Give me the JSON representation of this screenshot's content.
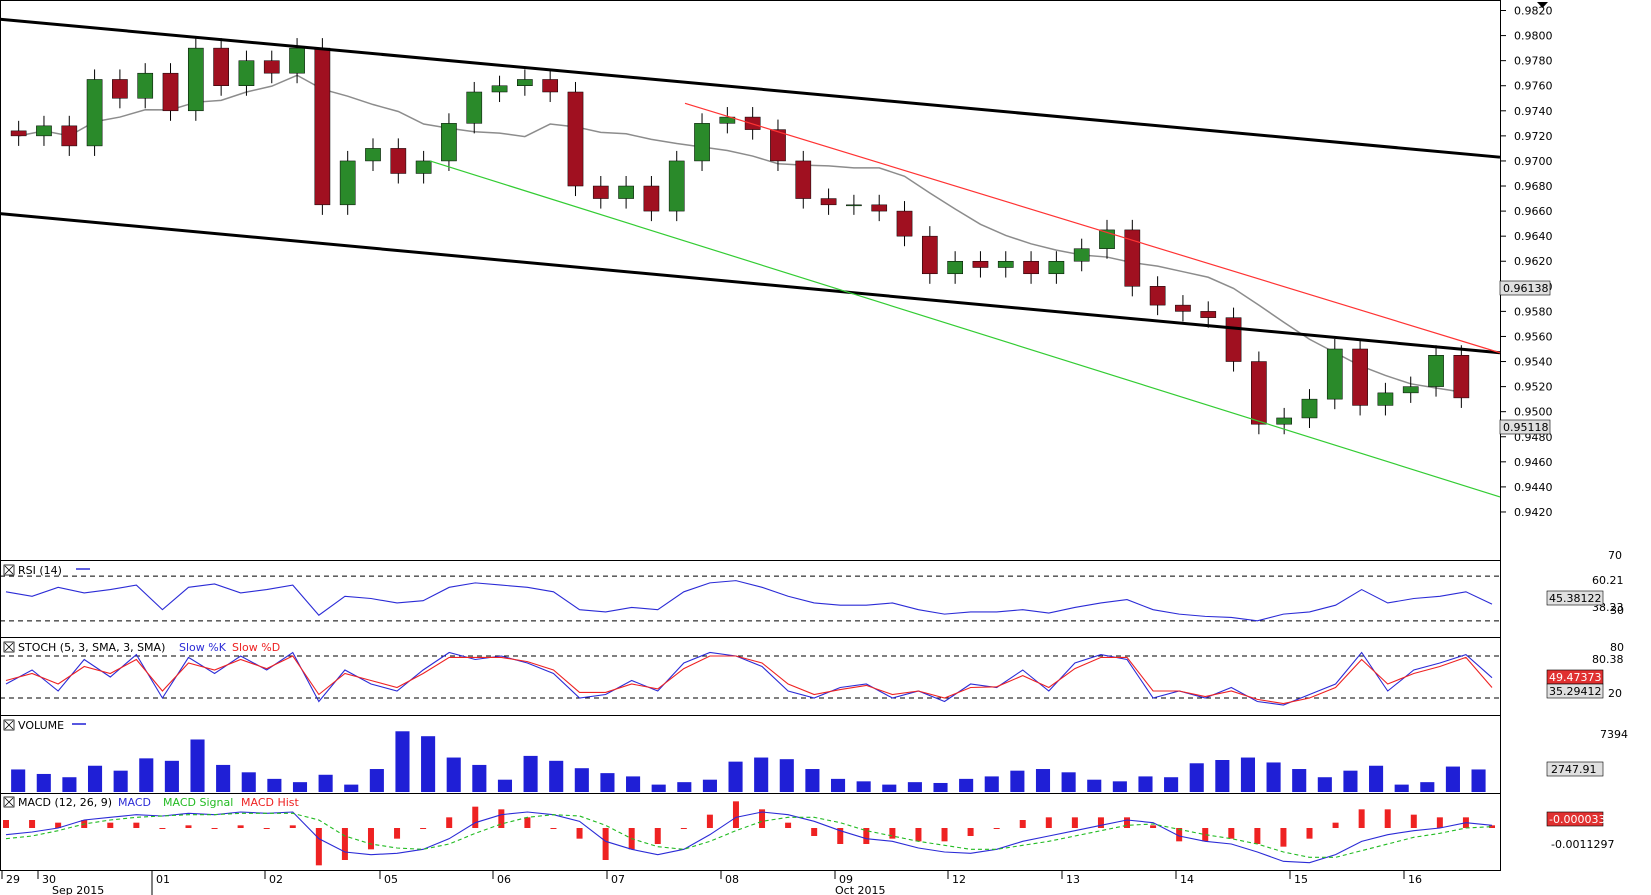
{
  "colors": {
    "candle_up": "#2a8a2a",
    "candle_down": "#a01020",
    "channel": "#000000",
    "moving_average": "#8c8c8c",
    "support_line": "#33cc33",
    "resistance_line": "#ff3333",
    "rsi": "#2b2bd6",
    "stoch_k": "#2b2bd6",
    "stoch_d": "#ee2222",
    "volume": "#1f1fd6",
    "macd": "#2b2bd6",
    "macd_signal": "#22bb22",
    "macd_hist": "#ee2222",
    "sma_label_bg": "#e0e0e0",
    "highlight_red": "#e03030"
  },
  "chart_data": [
    {
      "type": "candlestick",
      "panel": "price",
      "y_ticks": [
        "0.9820",
        "0.9800",
        "0.9780",
        "0.9760",
        "0.9740",
        "0.9720",
        "0.9700",
        "0.9680",
        "0.9660",
        "0.9640",
        "0.9620",
        "0.9600",
        "0.9580",
        "0.9560",
        "0.9540",
        "0.9520",
        "0.9500",
        "0.9480",
        "0.9460",
        "0.9440",
        "0.9420"
      ],
      "ylim": [
        0.9412,
        0.9822
      ],
      "x_ticks": [
        "29",
        "30",
        "01",
        "02",
        "05",
        "06",
        "07",
        "08",
        "09",
        "12",
        "13",
        "14",
        "15",
        "16"
      ],
      "x_month_labels": [
        "Sep 2015",
        "Oct 2015"
      ],
      "price_close": [
        0.972,
        0.9728,
        0.9712,
        0.9765,
        0.975,
        0.977,
        0.974,
        0.979,
        0.976,
        0.978,
        0.977,
        0.979,
        0.9665,
        0.97,
        0.971,
        0.969,
        0.97,
        0.973,
        0.9755,
        0.976,
        0.9765,
        0.9755,
        0.968,
        0.967,
        0.968,
        0.966,
        0.97,
        0.973,
        0.9735,
        0.9725,
        0.97,
        0.967,
        0.9665,
        0.9665,
        0.966,
        0.964,
        0.961,
        0.962,
        0.9615,
        0.962,
        0.961,
        0.962,
        0.963,
        0.9645,
        0.96,
        0.9585,
        0.958,
        0.9575,
        0.954,
        0.949,
        0.9495,
        0.951,
        0.955,
        0.9505,
        0.9515,
        0.952,
        0.9545,
        0.9511
      ],
      "moving_average_label": "0.96138",
      "last_price_label": "0.95118",
      "channel_upper": [
        [
          0,
          0.9813
        ],
        [
          1500,
          0.9703
        ]
      ],
      "channel_lower": [
        [
          0,
          0.9658
        ],
        [
          1500,
          0.9547
        ]
      ],
      "support_line": [
        [
          430,
          0.97
        ],
        [
          1500,
          0.9432
        ]
      ],
      "resistance_line": [
        [
          685,
          0.9746
        ],
        [
          1500,
          0.9547
        ]
      ]
    },
    {
      "type": "line",
      "panel": "rsi",
      "title": "RSI (14)",
      "levels": [
        "70",
        "30"
      ],
      "axis_labels": [
        "60.21",
        "38.23"
      ],
      "current_label": "45.38122",
      "series": [
        {
          "name": "RSI (14)",
          "values": [
            56,
            52,
            60,
            55,
            58,
            62,
            40,
            60,
            63,
            55,
            58,
            62,
            35,
            52,
            50,
            46,
            48,
            60,
            64,
            62,
            60,
            56,
            40,
            38,
            42,
            40,
            56,
            64,
            66,
            60,
            52,
            46,
            44,
            44,
            46,
            40,
            36,
            38,
            38,
            40,
            37,
            42,
            46,
            49,
            40,
            36,
            34,
            33,
            30,
            36,
            38,
            44,
            58,
            46,
            50,
            52,
            56,
            45
          ]
        }
      ]
    },
    {
      "type": "line",
      "panel": "stochastic",
      "title": "STOCH (5, 3, SMA, 3, SMA)",
      "legend": [
        "Slow %K",
        "Slow %D"
      ],
      "levels": [
        "80",
        "20"
      ],
      "axis_labels": [
        "80.38",
        "20"
      ],
      "k_label": "49.47373",
      "d_label": "35.29412",
      "series": [
        {
          "name": "Slow %K",
          "values": [
            40,
            60,
            30,
            75,
            50,
            82,
            20,
            78,
            55,
            80,
            60,
            85,
            15,
            60,
            40,
            30,
            60,
            85,
            75,
            80,
            70,
            55,
            20,
            25,
            45,
            30,
            70,
            85,
            80,
            65,
            30,
            20,
            35,
            40,
            20,
            30,
            15,
            40,
            35,
            60,
            30,
            70,
            82,
            75,
            20,
            30,
            20,
            35,
            15,
            10,
            25,
            40,
            85,
            30,
            60,
            70,
            82,
            49
          ]
        },
        {
          "name": "Slow %D",
          "values": [
            45,
            55,
            40,
            65,
            55,
            75,
            30,
            70,
            60,
            75,
            62,
            80,
            25,
            55,
            45,
            35,
            55,
            78,
            78,
            78,
            72,
            60,
            28,
            28,
            40,
            33,
            62,
            80,
            80,
            70,
            40,
            25,
            32,
            38,
            25,
            30,
            20,
            35,
            36,
            52,
            35,
            62,
            78,
            78,
            30,
            30,
            22,
            30,
            18,
            12,
            20,
            35,
            75,
            40,
            55,
            65,
            78,
            35
          ]
        }
      ]
    },
    {
      "type": "bar",
      "panel": "volume",
      "title": "VOLUME",
      "axis_labels": [
        "7394"
      ],
      "current_label": "2747.91",
      "series": [
        {
          "name": "VOLUME",
          "values": [
            2747,
            2200,
            1800,
            3200,
            2600,
            4100,
            3800,
            6400,
            3300,
            2400,
            1600,
            1200,
            2100,
            900,
            2800,
            7400,
            6800,
            4200,
            3300,
            1500,
            4400,
            3800,
            2900,
            2300,
            1900,
            900,
            1200,
            1500,
            3700,
            4200,
            4000,
            2800,
            1600,
            1300,
            900,
            1200,
            1100,
            1600,
            1900,
            2600,
            2800,
            2400,
            1500,
            1300,
            1900,
            1800,
            3500,
            3900,
            4200,
            3600,
            2800,
            1800,
            2600,
            3200,
            900,
            1200,
            3100,
            2747
          ]
        }
      ]
    },
    {
      "type": "line",
      "panel": "macd",
      "title": "MACD (12, 26, 9)",
      "legend": [
        "MACD",
        "MACD Signal",
        "MACD Hist"
      ],
      "axis_labels": [
        "-0.0011297"
      ],
      "current_label": "-0.0000339",
      "series": [
        {
          "name": "MACD",
          "values": [
            -0.0005,
            -0.0003,
            0.0,
            0.0006,
            0.0008,
            0.001,
            0.0009,
            0.0011,
            0.001,
            0.0012,
            0.0011,
            0.0012,
            -0.0008,
            -0.0018,
            -0.002,
            -0.0019,
            -0.0016,
            -0.0008,
            0.0004,
            0.001,
            0.0012,
            0.001,
            0.0005,
            -0.001,
            -0.0016,
            -0.002,
            -0.0016,
            -0.0005,
            0.0008,
            0.0012,
            0.001,
            0.0005,
            -0.0002,
            -0.0008,
            -0.001,
            -0.0015,
            -0.0018,
            -0.0019,
            -0.0016,
            -0.001,
            -0.0006,
            -0.0002,
            0.0002,
            0.0006,
            0.0004,
            -0.0006,
            -0.001,
            -0.0012,
            -0.0018,
            -0.0025,
            -0.0026,
            -0.002,
            -0.001,
            -0.0005,
            -0.0002,
            0.0,
            0.0004,
            0.0002
          ]
        },
        {
          "name": "MACD Signal",
          "values": [
            -0.0008,
            -0.0006,
            -0.0002,
            0.0003,
            0.0006,
            0.0008,
            0.0009,
            0.001,
            0.001,
            0.0011,
            0.0011,
            0.0011,
            0.0006,
            -0.0006,
            -0.0012,
            -0.0015,
            -0.0016,
            -0.0012,
            -0.0004,
            0.0003,
            0.0008,
            0.001,
            0.0009,
            0.0002,
            -0.0008,
            -0.0014,
            -0.0016,
            -0.001,
            -0.0002,
            0.0005,
            0.0008,
            0.0008,
            0.0004,
            -0.0002,
            -0.0006,
            -0.001,
            -0.0013,
            -0.0016,
            -0.0016,
            -0.0013,
            -0.001,
            -0.0006,
            -0.0002,
            0.0002,
            0.0003,
            -0.0001,
            -0.0005,
            -0.0008,
            -0.0012,
            -0.0018,
            -0.0022,
            -0.0022,
            -0.0017,
            -0.0012,
            -0.0007,
            -0.0004,
            0.0,
            0.0001
          ]
        }
      ]
    }
  ]
}
